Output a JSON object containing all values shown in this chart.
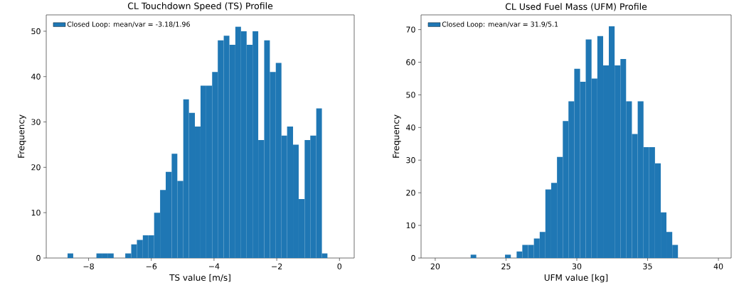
{
  "chart_data": [
    {
      "type": "histogram",
      "title": "CL Touchdown Speed (TS) Profile",
      "xlabel": "TS value [m/s]",
      "ylabel": "Frequency",
      "legend": "top left",
      "bins": [
        -8.67,
        -8.49,
        -8.3,
        -8.12,
        -7.93,
        -7.75,
        -7.56,
        -7.38,
        -7.2,
        -7.01,
        -6.83,
        -6.64,
        -6.46,
        -6.27,
        -6.09,
        -5.91,
        -5.72,
        -5.54,
        -5.35,
        -5.17,
        -4.98,
        -4.8,
        -4.61,
        -4.43,
        -4.25,
        -4.06,
        -3.88,
        -3.69,
        -3.51,
        -3.32,
        -3.14,
        -2.96,
        -2.77,
        -2.59,
        -2.4,
        -2.22,
        -2.03,
        -1.85,
        -1.67,
        -1.48,
        -1.3,
        -1.11,
        -0.93,
        -0.74,
        -0.56,
        -0.38
      ],
      "series": [
        {
          "name": "Closed Loop: mean/var = -3.18/1.96",
          "color": "#1f77b4",
          "values": [
            1,
            0,
            0,
            0,
            0,
            1,
            1,
            1,
            0,
            0,
            1,
            3,
            4,
            5,
            5,
            10,
            15,
            19,
            23,
            17,
            35,
            32,
            29,
            38,
            38,
            41,
            48,
            49,
            47,
            51,
            50,
            47,
            50,
            26,
            48,
            41,
            43,
            27,
            29,
            25,
            13,
            26,
            27,
            33,
            1
          ]
        }
      ],
      "xlim": [
        -9.35,
        0.47
      ],
      "ylim": [
        0,
        53.6
      ],
      "xticks": [
        {
          "value": -8,
          "label": "−8"
        },
        {
          "value": -6,
          "label": "−6"
        },
        {
          "value": -4,
          "label": "−4"
        },
        {
          "value": -2,
          "label": "−2"
        },
        0
      ],
      "yticks": [
        0,
        10,
        20,
        30,
        40,
        50
      ]
    },
    {
      "type": "histogram",
      "title": "CL Used Fuel Mass (UFM) Profile",
      "xlabel": "UFM value [kg]",
      "ylabel": "Frequency",
      "legend": "top left",
      "bins": [
        22.49,
        22.9,
        23.3,
        23.71,
        24.12,
        24.53,
        24.93,
        25.34,
        25.75,
        26.15,
        26.56,
        26.97,
        27.38,
        27.78,
        28.19,
        28.6,
        29.01,
        29.41,
        29.82,
        30.23,
        30.63,
        31.04,
        31.45,
        31.86,
        32.26,
        32.67,
        33.08,
        33.48,
        33.89,
        34.3,
        34.71,
        35.11,
        35.52,
        35.93,
        36.33,
        36.74,
        37.15
      ],
      "series": [
        {
          "name": "Closed Loop: mean/var = 31.9/5.1",
          "color": "#1f77b4",
          "values": [
            1,
            0,
            0,
            0,
            0,
            0,
            1,
            0,
            2,
            4,
            4,
            6,
            8,
            21,
            23,
            31,
            42,
            48,
            58,
            54,
            67,
            55,
            68,
            59,
            71,
            59,
            61,
            48,
            38,
            48,
            34,
            34,
            29,
            14,
            8,
            4
          ]
        }
      ],
      "xlim": [
        19.0,
        40.9
      ],
      "ylim": [
        0,
        74.5
      ],
      "xticks": [
        20,
        25,
        30,
        35,
        40
      ],
      "yticks": [
        0,
        10,
        20,
        30,
        40,
        50,
        60,
        70
      ]
    }
  ]
}
